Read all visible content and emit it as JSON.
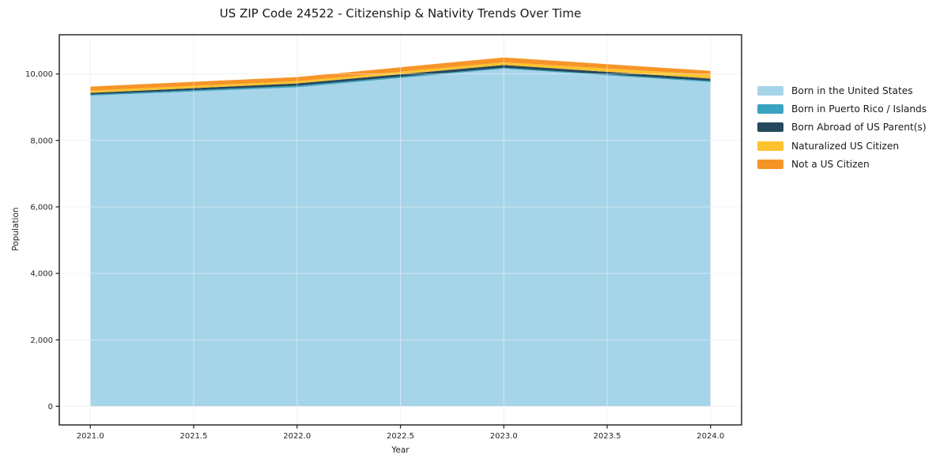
{
  "chart_data": {
    "type": "area",
    "stacked": true,
    "title": "US ZIP Code 24522 - Citizenship & Nativity Trends Over Time",
    "xlabel": "Year",
    "ylabel": "Population",
    "x": [
      2021,
      2022,
      2023,
      2024
    ],
    "series": [
      {
        "name": "Born in the United States",
        "color": "#a6d4e8",
        "values": [
          9350,
          9600,
          10160,
          9760
        ]
      },
      {
        "name": "Born in Puerto Rico / Islands",
        "color": "#3aa3c0",
        "values": [
          30,
          45,
          30,
          30
        ]
      },
      {
        "name": "Born Abroad of US Parent(s)",
        "color": "#25485c",
        "values": [
          50,
          70,
          80,
          70
        ]
      },
      {
        "name": "Naturalized US Citizen",
        "color": "#fcc32f",
        "values": [
          70,
          70,
          80,
          120
        ]
      },
      {
        "name": "Not a US Citizen",
        "color": "#f79428",
        "values": [
          120,
          120,
          145,
          115
        ]
      }
    ],
    "totals": [
      9620,
      9905,
      10495,
      10095
    ],
    "xticks": {
      "values": [
        2021,
        2021.5,
        2022,
        2022.5,
        2023,
        2023.5,
        2024
      ],
      "labels": [
        "2021.0",
        "2021.5",
        "2022.0",
        "2022.5",
        "2023.0",
        "2023.5",
        "2024.0"
      ]
    },
    "yticks": {
      "values": [
        0,
        2000,
        4000,
        6000,
        8000,
        10000
      ],
      "labels": [
        "0",
        "2,000",
        "4,000",
        "6,000",
        "8,000",
        "10,000"
      ]
    },
    "xlim": [
      2020.85,
      2024.15
    ],
    "ylim": [
      -560,
      11180
    ],
    "grid": true,
    "grid_color": "#e9e9e9",
    "legend_position": "right outside",
    "spine_color": "#1a1a1a",
    "tick_label_color": "#262626"
  }
}
